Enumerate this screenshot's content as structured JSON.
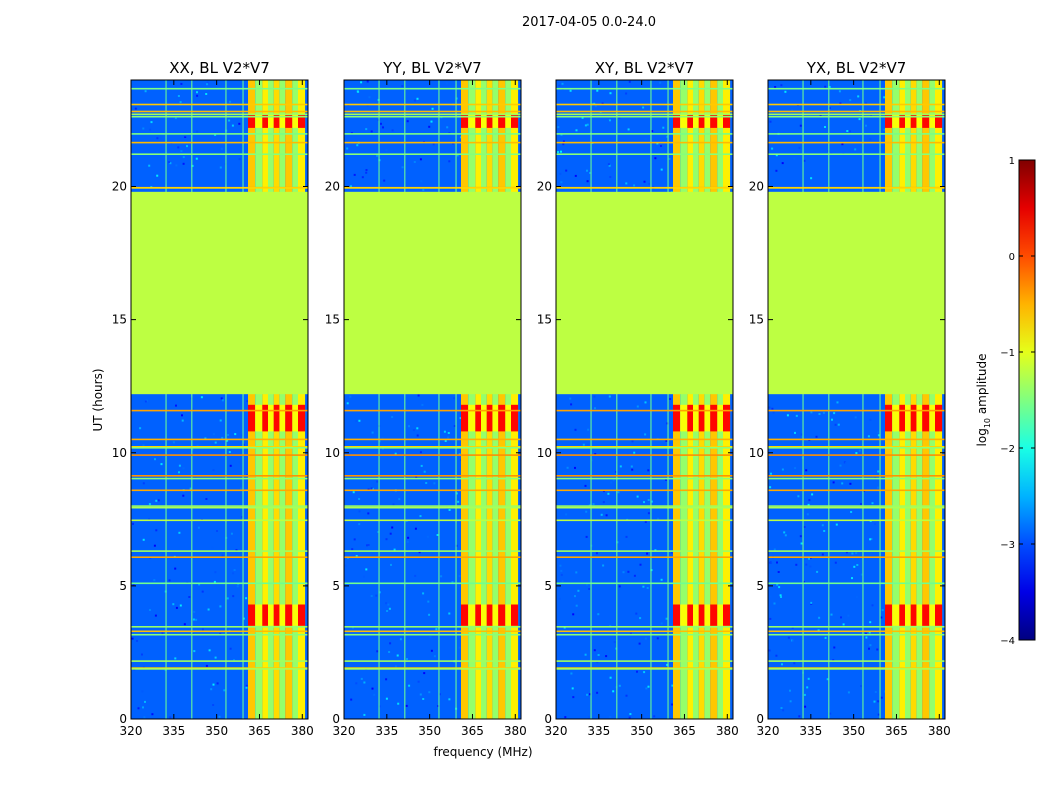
{
  "figure_title": "2017-04-05 0.0-24.0",
  "chart_data": {
    "type": "heatmap",
    "suptitle": "2017-04-05 0.0-24.0",
    "xlabel": "frequency (MHz)",
    "ylabel": "UT (hours)",
    "xlim": [
      320,
      382
    ],
    "ylim": [
      0,
      24
    ],
    "xticks": [
      320,
      335,
      350,
      365,
      380
    ],
    "yticks": [
      0,
      5,
      10,
      15,
      20
    ],
    "colorbar": {
      "label_main": "log",
      "label_sub": "10",
      "label_rest": " amplitude",
      "range": [
        -4,
        1
      ],
      "ticks": [
        1,
        0,
        -1,
        -2,
        -3,
        -4
      ],
      "tick_labels": [
        "1",
        "0",
        "−1",
        "−2",
        "−3",
        "−4"
      ],
      "colormap": "jet"
    },
    "panels": [
      {
        "title": "XX, BL V2*V7",
        "pol": "XX",
        "baseline": "V2*V7"
      },
      {
        "title": "YY, BL V2*V7",
        "pol": "YY",
        "baseline": "V2*V7"
      },
      {
        "title": "XY, BL V2*V7",
        "pol": "XY",
        "baseline": "V2*V7"
      },
      {
        "title": "YX, BL V2*V7",
        "pol": "YX",
        "baseline": "V2*V7"
      }
    ],
    "flagged_gap_hours": [
      12.2,
      19.8
    ],
    "flagged_value_log10": -1.2,
    "rfi_band_mhz": [
      361,
      381
    ],
    "rfi_strong_hours": [
      [
        3.5,
        4.3
      ],
      [
        10.8,
        11.8
      ],
      [
        22.2,
        22.7
      ]
    ],
    "background_log10": -2.9
  }
}
